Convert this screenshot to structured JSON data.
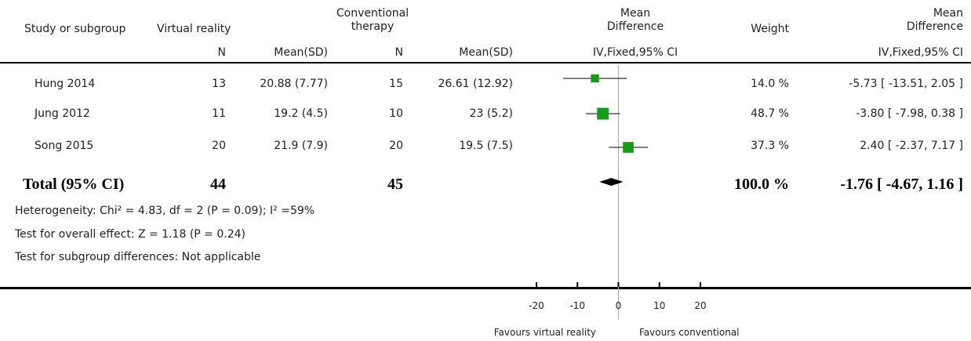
{
  "header": {
    "study": "Study or subgroup",
    "group1": "Virtual reality",
    "group2_line1": "Conventional",
    "group2_line2": "therapy",
    "md_line1": "Mean",
    "md_line2": "Difference",
    "weight": "Weight",
    "md2_line1": "Mean",
    "md2_line2": "Difference",
    "n1": "N",
    "mean1": "Mean(SD)",
    "n2": "N",
    "mean2": "Mean(SD)",
    "method1": "IV,Fixed,95% CI",
    "method2": "IV,Fixed,95% CI"
  },
  "studies": [
    {
      "name": "Hung 2014",
      "n1": "13",
      "mean1": "20.88 (7.77)",
      "n2": "15",
      "mean2": "26.61 (12.92)",
      "weight": "14.0 %",
      "ci": "-5.73 [ -13.51, 2.05 ]"
    },
    {
      "name": "Jung 2012",
      "n1": "11",
      "mean1": "19.2 (4.5)",
      "n2": "10",
      "mean2": "23 (5.2)",
      "weight": "48.7 %",
      "ci": "-3.80 [ -7.98, 0.38 ]"
    },
    {
      "name": "Song 2015",
      "n1": "20",
      "mean1": "21.9 (7.9)",
      "n2": "20",
      "mean2": "19.5 (7.5)",
      "weight": "37.3 %",
      "ci": "2.40 [ -2.37, 7.17 ]"
    }
  ],
  "total": {
    "label": "Total (95% CI)",
    "n1": "44",
    "n2": "45",
    "weight": "100.0 %",
    "ci": "-1.76 [ -4.67, 1.16 ]"
  },
  "footnotes": {
    "heterogeneity": "Heterogeneity: Chi² = 4.83, df = 2 (P = 0.09); I² =59%",
    "overall": "Test for overall effect: Z = 1.18 (P = 0.24)",
    "subgroup": "Test for subgroup differences: Not applicable"
  },
  "axis": {
    "favours_left": "Favours virtual reality",
    "favours_right": "Favours conventional"
  },
  "chart_data": {
    "type": "forest",
    "xlim": [
      -20,
      20
    ],
    "ticks": [
      -20,
      -10,
      0,
      10,
      20
    ],
    "tick_labels": [
      "-20",
      "-10",
      "0",
      "10",
      "20"
    ],
    "studies": [
      {
        "name": "Hung 2014",
        "md": -5.73,
        "lo": -13.51,
        "hi": 2.05,
        "weight": 14.0
      },
      {
        "name": "Jung 2012",
        "md": -3.8,
        "lo": -7.98,
        "hi": 0.38,
        "weight": 48.7
      },
      {
        "name": "Song 2015",
        "md": 2.4,
        "lo": -2.37,
        "hi": 7.17,
        "weight": 37.3
      }
    ],
    "total": {
      "md": -1.76,
      "lo": -4.67,
      "hi": 1.16
    },
    "marker_color": "#1a9a1a"
  }
}
